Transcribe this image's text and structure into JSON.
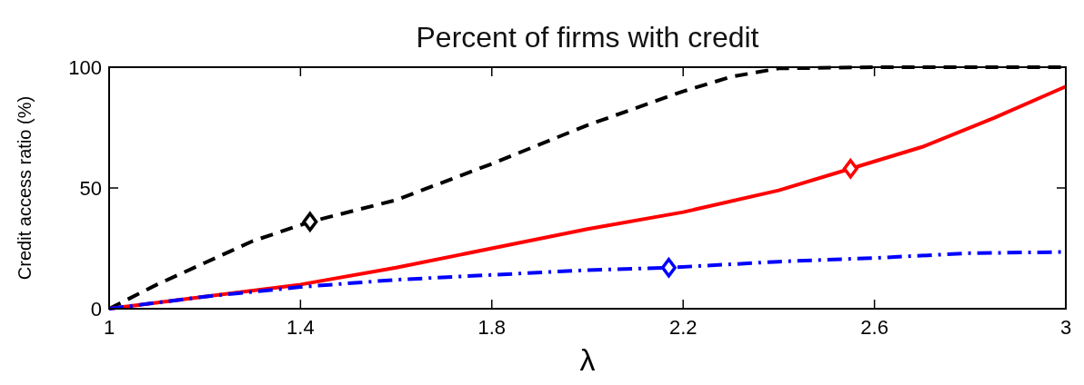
{
  "chart_data": {
    "type": "line",
    "title": "Percent of firms with credit",
    "xlabel": "λ",
    "ylabel": "Credit access ratio (%)",
    "xlim": [
      1,
      3
    ],
    "ylim": [
      0,
      100
    ],
    "xticks": [
      1,
      1.4,
      1.8,
      2.2,
      2.6,
      3
    ],
    "yticks": [
      0,
      50,
      100
    ],
    "grid": false,
    "series": [
      {
        "color": "#000000",
        "line_style": "dashed",
        "marker": "none",
        "x": [
          1,
          1.1,
          1.2,
          1.3,
          1.42,
          1.6,
          1.8,
          2.0,
          2.2,
          2.3,
          2.4,
          2.6,
          3
        ],
        "values": [
          0,
          10,
          19,
          28,
          36,
          45,
          60,
          76,
          90,
          96,
          99.5,
          100,
          100
        ]
      },
      {
        "color": "#ff0000",
        "line_style": "solid",
        "marker": "none",
        "x": [
          1,
          1.4,
          1.6,
          1.8,
          2.0,
          2.2,
          2.4,
          2.55,
          2.7,
          2.85,
          3
        ],
        "values": [
          0,
          10,
          17,
          25,
          33,
          40,
          49,
          58,
          67,
          79,
          92
        ]
      },
      {
        "color": "#0000ff",
        "line_style": "dashdot",
        "marker": "none",
        "x": [
          1,
          1.2,
          1.4,
          1.6,
          1.8,
          2.0,
          2.17,
          2.4,
          2.6,
          2.8,
          3
        ],
        "values": [
          0,
          5,
          9,
          12,
          14,
          16,
          17,
          19.5,
          21,
          23,
          23.5
        ]
      },
      {
        "type": "scatter",
        "color": "#000000",
        "marker": "diamond",
        "x": [
          1.42
        ],
        "values": [
          36
        ]
      },
      {
        "type": "scatter",
        "color": "#0000ff",
        "marker": "diamond",
        "x": [
          2.17
        ],
        "values": [
          17
        ]
      },
      {
        "type": "scatter",
        "color": "#ff0000",
        "marker": "diamond",
        "x": [
          2.55
        ],
        "values": [
          58
        ]
      }
    ]
  }
}
